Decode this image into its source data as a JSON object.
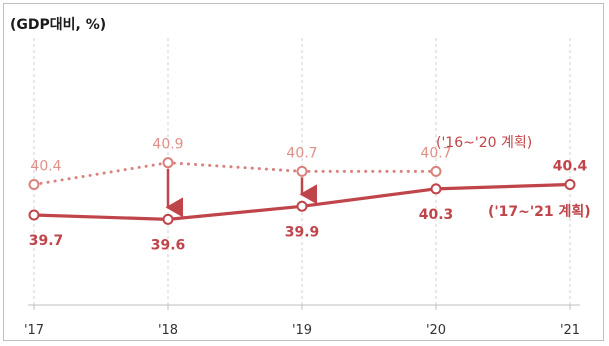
{
  "chart_data": {
    "type": "line",
    "title": "",
    "unit_label": "(GDP대비, %)",
    "categories": [
      "'17",
      "'18",
      "'19",
      "'20",
      "'21"
    ],
    "grid": "vertical-dashed",
    "series": [
      {
        "name": "('16~'20 계획)",
        "style": "dotted",
        "color": "#d9827d",
        "values": [
          40.4,
          40.9,
          40.7,
          40.7,
          null
        ],
        "labels": [
          "40.4",
          "40.9",
          "40.7",
          "40.7",
          ""
        ]
      },
      {
        "name": "('17~'21 계획)",
        "style": "solid",
        "color": "#c0454a",
        "values": [
          39.7,
          39.6,
          39.9,
          40.3,
          40.4
        ],
        "labels": [
          "39.7",
          "39.6",
          "39.9",
          "40.3",
          "40.4"
        ]
      }
    ],
    "arrows": [
      {
        "category": "'18",
        "from": 40.9,
        "to": 39.6
      },
      {
        "category": "'19",
        "from": 40.7,
        "to": 39.9
      }
    ]
  }
}
